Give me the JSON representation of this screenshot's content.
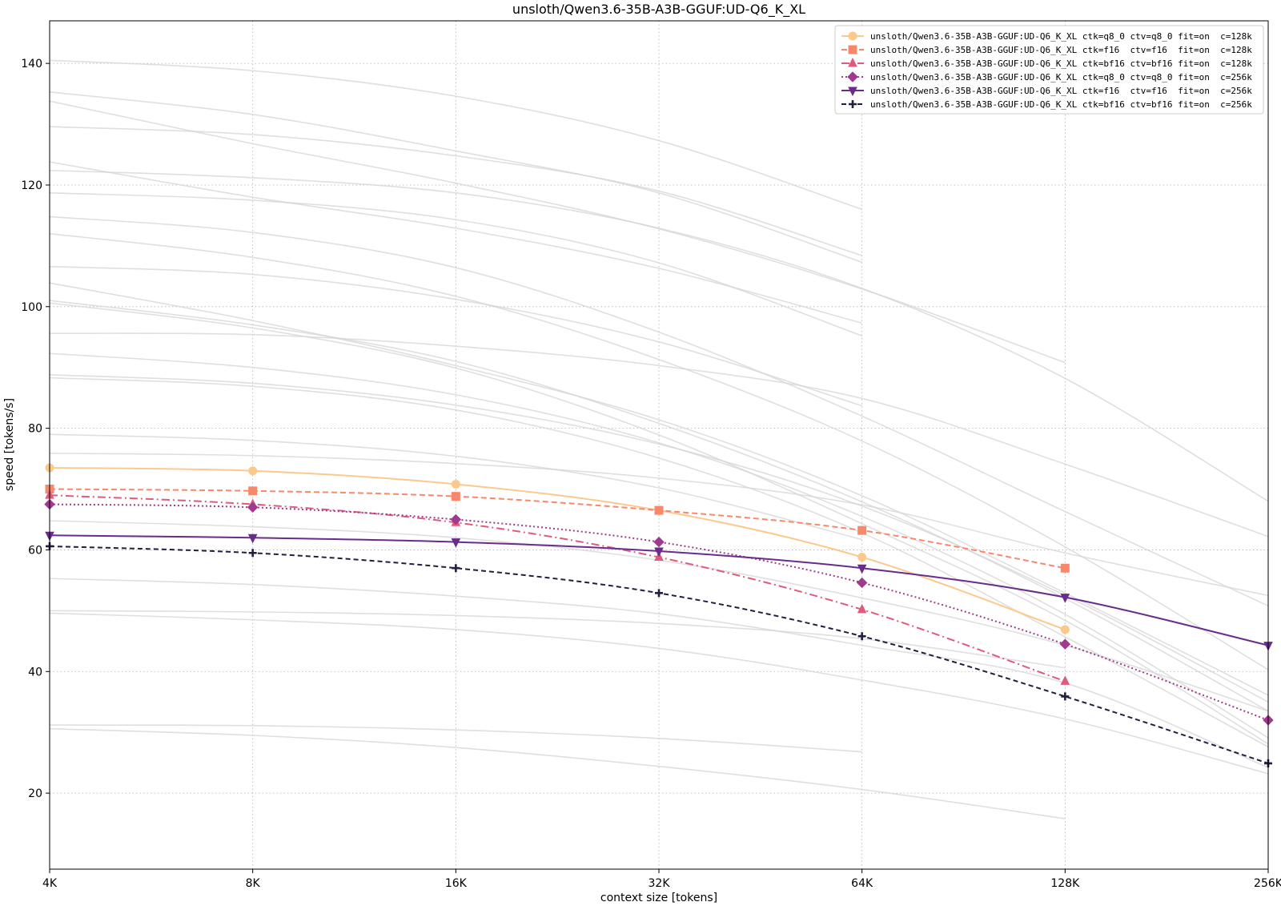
{
  "chart_data": {
    "type": "line",
    "title": "unsloth/Qwen3.6-35B-A3B-GGUF:UD-Q6_K_XL",
    "xlabel": "context size [tokens]",
    "ylabel": "speed [tokens/s]",
    "x_scale": "log2",
    "x": [
      4096,
      8192,
      16384,
      32768,
      65536,
      131072,
      262144
    ],
    "x_tick_labels": [
      "4K",
      "8K",
      "16K",
      "32K",
      "64K",
      "128K",
      "256K"
    ],
    "xlim": [
      4096,
      262144
    ],
    "ylim": [
      7.5,
      147
    ],
    "y_ticks": [
      20,
      40,
      60,
      80,
      100,
      120,
      140
    ],
    "grid": true,
    "legend_position": "top-right",
    "series": [
      {
        "name": "unsloth/Qwen3.6-35B-A3B-GGUF:UD-Q6_K_XL ctk=q8_0 ctv=q8_0 fit=on  c=128k",
        "color": "#fcc98d",
        "dash": "",
        "marker": "circle",
        "values": [
          73.5,
          73.0,
          70.8,
          66.5,
          58.8,
          46.9,
          null
        ]
      },
      {
        "name": "unsloth/Qwen3.6-35B-A3B-GGUF:UD-Q6_K_XL ctk=f16  ctv=f16  fit=on  c=128k",
        "color": "#f9886b",
        "dash": "7,4",
        "marker": "square",
        "values": [
          70.0,
          69.7,
          68.8,
          66.5,
          63.2,
          57.0,
          null
        ]
      },
      {
        "name": "unsloth/Qwen3.6-35B-A3B-GGUF:UD-Q6_K_XL ctk=bf16 ctv=bf16 fit=on  c=128k",
        "color": "#e05b7b",
        "dash": "10,4,2,4",
        "marker": "triangle-up",
        "values": [
          69.0,
          67.5,
          64.5,
          58.8,
          50.2,
          38.4,
          null
        ]
      },
      {
        "name": "unsloth/Qwen3.6-35B-A3B-GGUF:UD-Q6_K_XL ctk=q8_0 ctv=q8_0 fit=on  c=256k",
        "color": "#a03a8e",
        "dash": "2,3",
        "marker": "diamond",
        "values": [
          67.5,
          67.0,
          65.0,
          61.3,
          54.6,
          44.5,
          32.0
        ]
      },
      {
        "name": "unsloth/Qwen3.6-35B-A3B-GGUF:UD-Q6_K_XL ctk=f16  ctv=f16  fit=on  c=256k",
        "color": "#6a2c8a",
        "dash": "",
        "marker": "triangle-down",
        "values": [
          62.4,
          62.0,
          61.3,
          59.8,
          57.0,
          52.2,
          44.3
        ]
      },
      {
        "name": "unsloth/Qwen3.6-35B-A3B-GGUF:UD-Q6_K_XL ctk=bf16 ctv=bf16 fit=on  c=256k",
        "color": "#231d3f",
        "dash": "6,4",
        "marker": "plus",
        "values": [
          60.6,
          59.5,
          57.0,
          52.9,
          45.8,
          35.9,
          24.9
        ]
      }
    ],
    "background_series_color": "#d4d4d4",
    "background_series": [
      {
        "values": [
          140.5,
          138.8,
          134.6,
          127.3,
          116.0
        ]
      },
      {
        "values": [
          135.3,
          131.6,
          125.6,
          118.7,
          107.3
        ]
      },
      {
        "values": [
          133.8,
          126.8,
          120.3,
          112.8,
          102.9,
          90.8
        ]
      },
      {
        "values": [
          129.6,
          128.3,
          124.8,
          119.0,
          108.4
        ]
      },
      {
        "values": [
          123.8,
          118.0,
          112.9,
          106.3,
          97.3
        ]
      },
      {
        "values": [
          122.4,
          121.2,
          118.7,
          112.9,
          103.0,
          88.2,
          68.0
        ]
      },
      {
        "values": [
          118.7,
          117.5,
          114.3,
          107.2,
          95.2
        ]
      },
      {
        "values": [
          114.8,
          112.2,
          106.4,
          95.8,
          82.0,
          66.3,
          50.8
        ]
      },
      {
        "values": [
          112.0,
          108.1,
          101.7,
          91.3,
          77.9,
          60.5,
          40.3
        ]
      },
      {
        "values": [
          106.6,
          105.3,
          101.2,
          94.2,
          83.7
        ]
      },
      {
        "values": [
          103.9,
          97.7,
          90.3,
          81.4,
          68.9,
          52.9,
          36.1
        ]
      },
      {
        "values": [
          101.0,
          97.0,
          91.0,
          80.8,
          67.9,
          52.0,
          33.5
        ]
      },
      {
        "values": [
          100.6,
          96.5,
          89.9,
          78.9,
          64.3,
          48.4,
          28.1
        ]
      },
      {
        "values": [
          95.6,
          95.4,
          93.5,
          90.3,
          84.9,
          74.1,
          62.2
        ]
      },
      {
        "values": [
          92.3,
          90.0,
          85.5,
          77.6,
          65.5,
          49.4,
          29.1
        ]
      },
      {
        "values": [
          88.8,
          87.4,
          83.8,
          77.4,
          67.2,
          52.5,
          35.0
        ]
      },
      {
        "values": [
          88.3,
          86.9,
          83.0,
          75.1,
          62.8,
          45.7,
          27.6
        ]
      },
      {
        "values": [
          79.0,
          78.0,
          75.4,
          70.2,
          61.7
        ]
      },
      {
        "values": [
          75.9,
          75.5,
          74.2,
          71.8,
          67.4,
          59.5,
          52.5
        ]
      },
      {
        "values": [
          64.8,
          63.8,
          62.0,
          58.3,
          52.1,
          44.3,
          33.5
        ]
      },
      {
        "values": [
          55.3,
          54.3,
          52.4,
          49.5,
          44.3,
          38.1,
          24.2
        ]
      },
      {
        "values": [
          50.0,
          49.8,
          49.2,
          47.9,
          45.4,
          40.6
        ]
      },
      {
        "values": [
          49.6,
          48.5,
          46.9,
          43.8,
          38.6,
          32.2,
          23.2
        ]
      },
      {
        "values": [
          31.2,
          31.1,
          30.4,
          29.0,
          26.8
        ]
      },
      {
        "values": [
          30.6,
          29.5,
          27.5,
          24.4,
          20.6,
          15.8
        ]
      }
    ]
  }
}
